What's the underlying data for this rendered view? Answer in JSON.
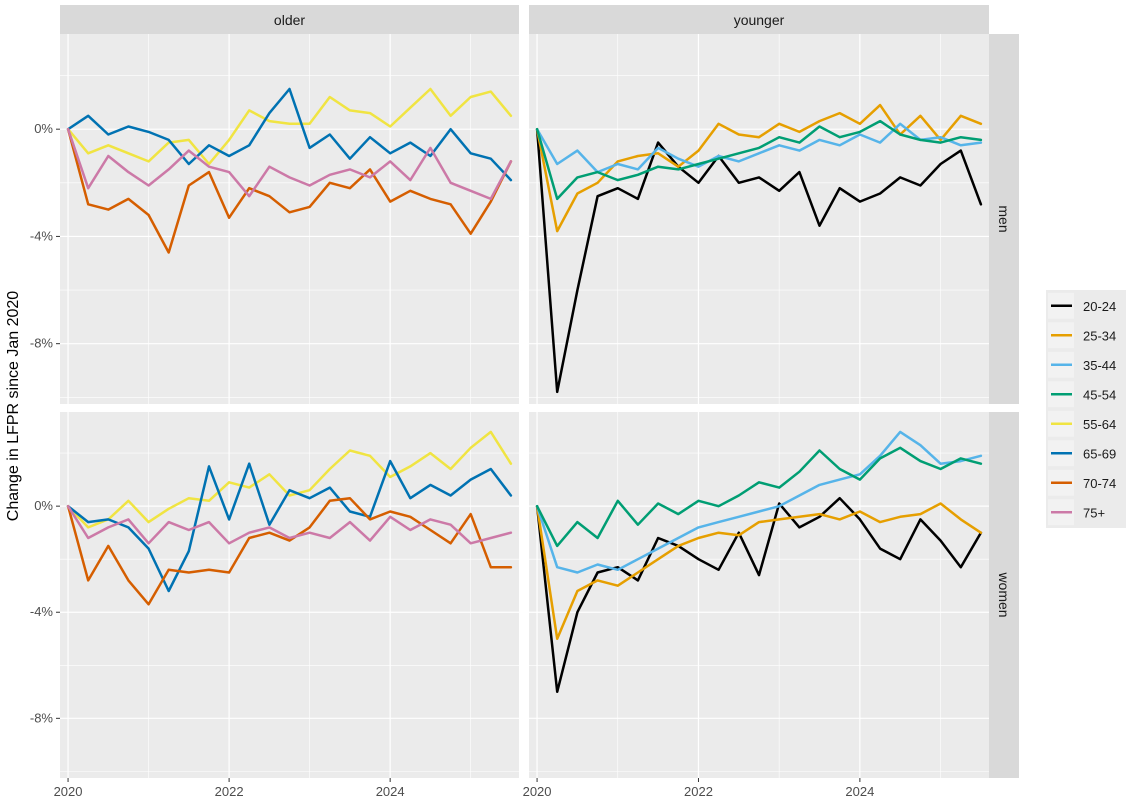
{
  "chart_data": {
    "type": "line",
    "ylabel": "Change in LFPR since Jan 2020",
    "xlabel": "",
    "col_facets": [
      "older",
      "younger"
    ],
    "row_facets": [
      "men",
      "women"
    ],
    "x_ticks": [
      "2020",
      "2022",
      "2024"
    ],
    "y_ticks": [
      "0%",
      "-4%",
      "-8%"
    ],
    "xlim": [
      2019.9,
      2025.6
    ],
    "ylim": [
      -10.25,
      3.55
    ],
    "legend_position": "right",
    "series_info": [
      {
        "name": "20-24",
        "color": "#000000"
      },
      {
        "name": "25-34",
        "color": "#E69F00"
      },
      {
        "name": "35-44",
        "color": "#56B4E9"
      },
      {
        "name": "45-54",
        "color": "#009E73"
      },
      {
        "name": "55-64",
        "color": "#F0E442"
      },
      {
        "name": "65-69",
        "color": "#0072B2"
      },
      {
        "name": "70-74",
        "color": "#D55E00"
      },
      {
        "name": "75+",
        "color": "#CC79A7"
      }
    ],
    "panels": [
      {
        "facet": "older",
        "row": "men",
        "start": 2020,
        "step": 0.25,
        "series": [
          {
            "name": "55-64",
            "values": [
              0,
              -0.9,
              -0.6,
              -0.9,
              -1.2,
              -0.5,
              -0.4,
              -1.3,
              -0.4,
              0.7,
              0.3,
              0.2,
              0.2,
              1.2,
              0.7,
              0.6,
              0.1,
              0.8,
              1.5,
              0.5,
              1.2,
              1.4,
              0.5
            ]
          },
          {
            "name": "65-69",
            "values": [
              0,
              0.5,
              -0.2,
              0.1,
              -0.1,
              -0.4,
              -1.3,
              -0.6,
              -1.0,
              -0.6,
              0.6,
              1.5,
              -0.7,
              -0.2,
              -1.1,
              -0.3,
              -0.9,
              -0.5,
              -1.0,
              0.0,
              -0.9,
              -1.1,
              -1.9
            ]
          },
          {
            "name": "70-74",
            "values": [
              0,
              -2.8,
              -3.0,
              -2.6,
              -3.2,
              -4.6,
              -2.1,
              -1.6,
              -3.3,
              -2.2,
              -2.5,
              -3.1,
              -2.9,
              -2.0,
              -2.2,
              -1.5,
              -2.7,
              -2.3,
              -2.6,
              -2.8,
              -3.9,
              -2.7,
              -1.2
            ]
          },
          {
            "name": "75+",
            "values": [
              0,
              -2.2,
              -1.0,
              -1.6,
              -2.1,
              -1.5,
              -0.8,
              -1.4,
              -1.6,
              -2.5,
              -1.4,
              -1.8,
              -2.1,
              -1.7,
              -1.5,
              -1.8,
              -1.2,
              -1.9,
              -0.7,
              -2.0,
              -2.3,
              -2.6,
              -1.2
            ]
          }
        ]
      },
      {
        "facet": "younger",
        "row": "men",
        "start": 2020,
        "step": 0.25,
        "series": [
          {
            "name": "20-24",
            "values": [
              0,
              -9.8,
              -6.0,
              -2.5,
              -2.2,
              -2.6,
              -0.5,
              -1.4,
              -2.0,
              -1.0,
              -2.0,
              -1.8,
              -2.3,
              -1.6,
              -3.6,
              -2.2,
              -2.7,
              -2.4,
              -1.8,
              -2.1,
              -1.3,
              -0.8,
              -2.8
            ]
          },
          {
            "name": "25-34",
            "values": [
              0,
              -3.8,
              -2.4,
              -2.0,
              -1.2,
              -1.0,
              -0.9,
              -1.4,
              -0.8,
              0.2,
              -0.2,
              -0.3,
              0.2,
              -0.1,
              0.3,
              0.6,
              0.2,
              0.9,
              -0.2,
              0.5,
              -0.4,
              0.5,
              0.2
            ]
          },
          {
            "name": "35-44",
            "values": [
              0,
              -1.3,
              -0.8,
              -1.6,
              -1.3,
              -1.5,
              -0.7,
              -1.1,
              -1.4,
              -1.0,
              -1.2,
              -0.9,
              -0.6,
              -0.8,
              -0.4,
              -0.6,
              -0.2,
              -0.5,
              0.2,
              -0.4,
              -0.3,
              -0.6,
              -0.5
            ]
          },
          {
            "name": "45-54",
            "values": [
              0,
              -2.6,
              -1.8,
              -1.6,
              -1.9,
              -1.7,
              -1.4,
              -1.5,
              -1.3,
              -1.1,
              -0.9,
              -0.7,
              -0.3,
              -0.5,
              0.1,
              -0.3,
              -0.1,
              0.3,
              -0.2,
              -0.4,
              -0.5,
              -0.3,
              -0.4
            ]
          }
        ]
      },
      {
        "facet": "older",
        "row": "women",
        "start": 2020,
        "step": 0.25,
        "series": [
          {
            "name": "55-64",
            "values": [
              0,
              -0.8,
              -0.5,
              0.2,
              -0.6,
              -0.1,
              0.3,
              0.2,
              0.9,
              0.7,
              1.2,
              0.4,
              0.6,
              1.4,
              2.1,
              1.9,
              1.1,
              1.5,
              2.0,
              1.4,
              2.2,
              2.8,
              1.6
            ]
          },
          {
            "name": "65-69",
            "values": [
              0,
              -0.6,
              -0.5,
              -0.8,
              -1.6,
              -3.2,
              -1.7,
              1.5,
              -0.5,
              1.6,
              -0.7,
              0.6,
              0.3,
              0.7,
              -0.2,
              -0.4,
              1.7,
              0.3,
              0.8,
              0.4,
              1.0,
              1.4,
              0.4
            ]
          },
          {
            "name": "70-74",
            "values": [
              0,
              -2.8,
              -1.5,
              -2.8,
              -3.7,
              -2.4,
              -2.5,
              -2.4,
              -2.5,
              -1.2,
              -1.0,
              -1.3,
              -0.8,
              0.2,
              0.3,
              -0.5,
              -0.2,
              -0.4,
              -0.9,
              -1.4,
              -0.3,
              -2.3,
              -2.3
            ]
          },
          {
            "name": "75+",
            "values": [
              0,
              -1.2,
              -0.8,
              -0.5,
              -1.4,
              -0.6,
              -0.9,
              -0.6,
              -1.4,
              -1.0,
              -0.8,
              -1.2,
              -1.0,
              -1.2,
              -0.6,
              -1.3,
              -0.4,
              -0.9,
              -0.5,
              -0.7,
              -1.4,
              -1.2,
              -1.0
            ]
          }
        ]
      },
      {
        "facet": "younger",
        "row": "women",
        "start": 2020,
        "step": 0.25,
        "series": [
          {
            "name": "20-24",
            "values": [
              0,
              -7.0,
              -4.0,
              -2.5,
              -2.3,
              -2.8,
              -1.2,
              -1.5,
              -2.0,
              -2.4,
              -1.0,
              -2.6,
              0.1,
              -0.8,
              -0.4,
              0.3,
              -0.5,
              -1.6,
              -2.0,
              -0.5,
              -1.3,
              -2.3,
              -1.0
            ]
          },
          {
            "name": "25-34",
            "values": [
              0,
              -5.0,
              -3.2,
              -2.8,
              -3.0,
              -2.5,
              -2.0,
              -1.5,
              -1.2,
              -1.0,
              -1.1,
              -0.6,
              -0.5,
              -0.4,
              -0.3,
              -0.5,
              -0.2,
              -0.6,
              -0.4,
              -0.3,
              0.1,
              -0.5,
              -1.0
            ]
          },
          {
            "name": "35-44",
            "values": [
              0,
              -2.3,
              -2.5,
              -2.2,
              -2.4,
              -2.0,
              -1.6,
              -1.2,
              -0.8,
              -0.6,
              -0.4,
              -0.2,
              0.0,
              0.4,
              0.8,
              1.0,
              1.2,
              1.9,
              2.8,
              2.3,
              1.6,
              1.7,
              1.9
            ]
          },
          {
            "name": "45-54",
            "values": [
              0,
              -1.5,
              -0.6,
              -1.2,
              0.2,
              -0.7,
              0.1,
              -0.3,
              0.2,
              0.0,
              0.4,
              0.9,
              0.7,
              1.3,
              2.1,
              1.4,
              1.0,
              1.8,
              2.2,
              1.7,
              1.4,
              1.8,
              1.6
            ]
          }
        ]
      }
    ]
  }
}
